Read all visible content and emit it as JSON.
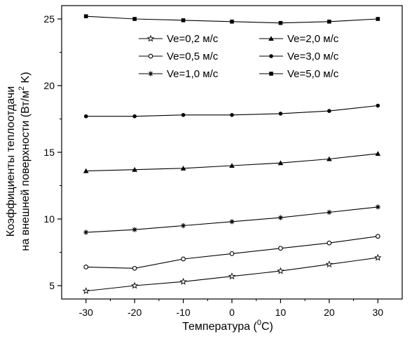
{
  "chart_data": {
    "type": "line",
    "x": [
      -30,
      -20,
      -10,
      0,
      10,
      20,
      30
    ],
    "xlabel_main": "Температура (",
    "xlabel_sup": "0",
    "xlabel_end": "C)",
    "ylabel_line1": "Коэффициенты теплоотдачи",
    "ylabel_line2_main": "на внешней поверхности (Вт/м",
    "ylabel_line2_sup": "2",
    "ylabel_line2_end": " K)",
    "xlim": [
      -35,
      35
    ],
    "ylim": [
      4,
      26
    ],
    "xticks": [
      -30,
      -20,
      -10,
      0,
      10,
      20,
      30
    ],
    "yticks": [
      5,
      10,
      15,
      20,
      25
    ],
    "grid": false,
    "legend_position": "top-right",
    "series": [
      {
        "name": "Ve=0,2 м/с",
        "marker": "star",
        "values": [
          4.6,
          5.0,
          5.3,
          5.7,
          6.1,
          6.6,
          7.1
        ]
      },
      {
        "name": "Ve=0,5 м/с",
        "marker": "open-circle",
        "values": [
          6.4,
          6.3,
          7.0,
          7.4,
          7.8,
          8.2,
          8.7
        ]
      },
      {
        "name": "Ve=1,0 м/с",
        "marker": "asterisk",
        "values": [
          9.0,
          9.2,
          9.5,
          9.8,
          10.1,
          10.5,
          10.9
        ]
      },
      {
        "name": "Ve=2,0 м/с",
        "marker": "triangle",
        "values": [
          13.6,
          13.7,
          13.8,
          14.0,
          14.2,
          14.5,
          14.9
        ]
      },
      {
        "name": "Ve=3,0 м/с",
        "marker": "filled-circle",
        "values": [
          17.7,
          17.7,
          17.8,
          17.8,
          17.9,
          18.1,
          18.5
        ]
      },
      {
        "name": "Ve=5,0 м/с",
        "marker": "square",
        "values": [
          25.2,
          25.0,
          24.9,
          24.8,
          24.7,
          24.8,
          25.0
        ]
      }
    ],
    "legend_order": [
      0,
      3,
      1,
      4,
      2,
      5
    ]
  }
}
